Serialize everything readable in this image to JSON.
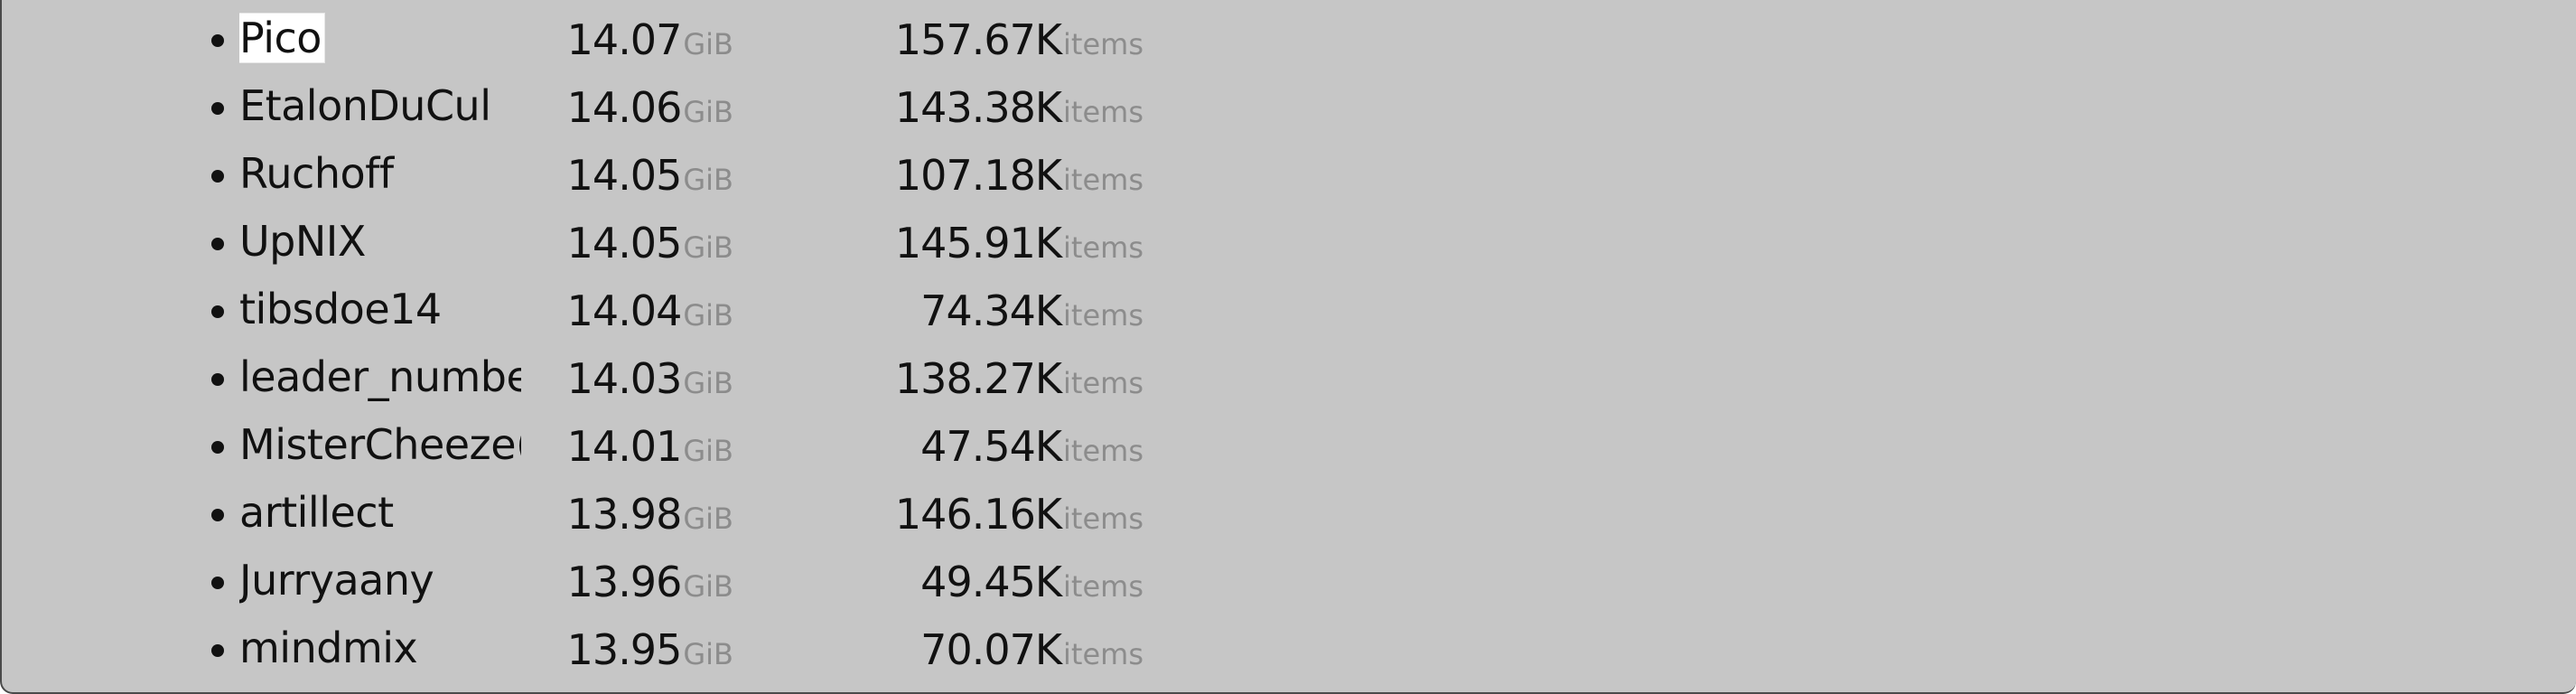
{
  "leaderboard": {
    "rows": [
      {
        "name": "Pico",
        "size": "14.07",
        "size_unit": "GiB",
        "items": "157.67K",
        "items_unit": "items",
        "selected": true
      },
      {
        "name": "EtalonDuCul",
        "size": "14.06",
        "size_unit": "GiB",
        "items": "143.38K",
        "items_unit": "items"
      },
      {
        "name": "Ruchoff",
        "size": "14.05",
        "size_unit": "GiB",
        "items": "107.18K",
        "items_unit": "items"
      },
      {
        "name": "UpNIX",
        "size": "14.05",
        "size_unit": "GiB",
        "items": "145.91K",
        "items_unit": "items"
      },
      {
        "name": "tibsdoe14",
        "size": "14.04",
        "size_unit": "GiB",
        "items": "74.34K",
        "items_unit": "items"
      },
      {
        "name": "leader_number",
        "size": "14.03",
        "size_unit": "GiB",
        "items": "138.27K",
        "items_unit": "items"
      },
      {
        "name": "MisterCheeze(",
        "size": "14.01",
        "size_unit": "GiB",
        "items": "47.54K",
        "items_unit": "items"
      },
      {
        "name": "artillect",
        "size": "13.98",
        "size_unit": "GiB",
        "items": "146.16K",
        "items_unit": "items"
      },
      {
        "name": "Jurryaany",
        "size": "13.96",
        "size_unit": "GiB",
        "items": "49.45K",
        "items_unit": "items"
      },
      {
        "name": "mindmix",
        "size": "13.95",
        "size_unit": "GiB",
        "items": "70.07K",
        "items_unit": "items"
      }
    ]
  }
}
